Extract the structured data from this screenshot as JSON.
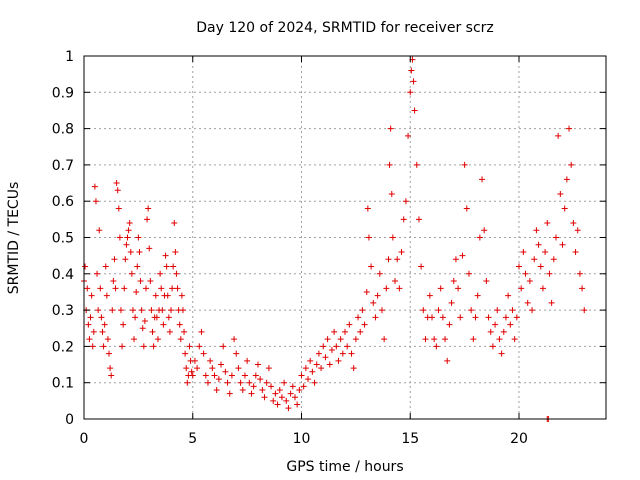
{
  "chart_data": {
    "type": "scatter",
    "title": "Day 120 of 2024, SRMTID for receiver scrz",
    "xlabel": "GPS time / hours",
    "ylabel": "SRMTID / TECUs",
    "xlim": [
      0,
      24
    ],
    "ylim": [
      0,
      1
    ],
    "xticks": [
      0,
      5,
      10,
      15,
      20
    ],
    "xtick_labels": [
      "0",
      "5",
      "10",
      "15",
      "20"
    ],
    "yticks": [
      0,
      0.1,
      0.2,
      0.3,
      0.4,
      0.5,
      0.6,
      0.7,
      0.8,
      0.9,
      1
    ],
    "ytick_labels": [
      "0",
      "0.1",
      "0.2",
      "0.3",
      "0.4",
      "0.5",
      "0.6",
      "0.7",
      "0.8",
      "0.9",
      "1"
    ],
    "grid": true,
    "marker": "+",
    "series": [
      {
        "name": "SRMTID",
        "color": "#e00000",
        "points": [
          [
            0.0,
            0.38
          ],
          [
            0.05,
            0.42
          ],
          [
            0.1,
            0.3
          ],
          [
            0.15,
            0.36
          ],
          [
            0.2,
            0.26
          ],
          [
            0.25,
            0.22
          ],
          [
            0.3,
            0.28
          ],
          [
            0.35,
            0.34
          ],
          [
            0.4,
            0.2
          ],
          [
            0.45,
            0.24
          ],
          [
            0.5,
            0.64
          ],
          [
            0.55,
            0.6
          ],
          [
            0.6,
            0.4
          ],
          [
            0.65,
            0.3
          ],
          [
            0.7,
            0.52
          ],
          [
            0.75,
            0.36
          ],
          [
            0.8,
            0.28
          ],
          [
            0.85,
            0.24
          ],
          [
            0.9,
            0.2
          ],
          [
            0.95,
            0.26
          ],
          [
            1.0,
            0.42
          ],
          [
            1.05,
            0.34
          ],
          [
            1.1,
            0.22
          ],
          [
            1.15,
            0.18
          ],
          [
            1.2,
            0.14
          ],
          [
            1.25,
            0.12
          ],
          [
            1.3,
            0.3
          ],
          [
            1.35,
            0.38
          ],
          [
            1.4,
            0.44
          ],
          [
            1.45,
            0.36
          ],
          [
            1.5,
            0.65
          ],
          [
            1.55,
            0.63
          ],
          [
            1.6,
            0.58
          ],
          [
            1.65,
            0.5
          ],
          [
            1.7,
            0.3
          ],
          [
            1.75,
            0.2
          ],
          [
            1.8,
            0.26
          ],
          [
            1.85,
            0.36
          ],
          [
            1.9,
            0.44
          ],
          [
            1.95,
            0.48
          ],
          [
            2.0,
            0.5
          ],
          [
            2.05,
            0.52
          ],
          [
            2.1,
            0.54
          ],
          [
            2.15,
            0.46
          ],
          [
            2.2,
            0.4
          ],
          [
            2.25,
            0.3
          ],
          [
            2.3,
            0.22
          ],
          [
            2.35,
            0.28
          ],
          [
            2.4,
            0.35
          ],
          [
            2.45,
            0.42
          ],
          [
            2.5,
            0.5
          ],
          [
            2.55,
            0.46
          ],
          [
            2.6,
            0.38
          ],
          [
            2.65,
            0.3
          ],
          [
            2.7,
            0.25
          ],
          [
            2.75,
            0.2
          ],
          [
            2.8,
            0.27
          ],
          [
            2.85,
            0.36
          ],
          [
            2.9,
            0.55
          ],
          [
            2.95,
            0.58
          ],
          [
            3.0,
            0.47
          ],
          [
            3.05,
            0.38
          ],
          [
            3.1,
            0.3
          ],
          [
            3.15,
            0.24
          ],
          [
            3.2,
            0.2
          ],
          [
            3.25,
            0.28
          ],
          [
            3.3,
            0.34
          ],
          [
            3.35,
            0.28
          ],
          [
            3.4,
            0.22
          ],
          [
            3.45,
            0.3
          ],
          [
            3.5,
            0.4
          ],
          [
            3.55,
            0.36
          ],
          [
            3.6,
            0.3
          ],
          [
            3.65,
            0.26
          ],
          [
            3.7,
            0.34
          ],
          [
            3.75,
            0.45
          ],
          [
            3.8,
            0.42
          ],
          [
            3.85,
            0.34
          ],
          [
            3.9,
            0.28
          ],
          [
            3.95,
            0.24
          ],
          [
            4.0,
            0.3
          ],
          [
            4.05,
            0.36
          ],
          [
            4.1,
            0.42
          ],
          [
            4.15,
            0.54
          ],
          [
            4.2,
            0.46
          ],
          [
            4.25,
            0.4
          ],
          [
            4.3,
            0.36
          ],
          [
            4.35,
            0.3
          ],
          [
            4.4,
            0.26
          ],
          [
            4.45,
            0.22
          ],
          [
            4.5,
            0.34
          ],
          [
            4.55,
            0.3
          ],
          [
            4.6,
            0.24
          ],
          [
            4.65,
            0.18
          ],
          [
            4.7,
            0.14
          ],
          [
            4.75,
            0.1
          ],
          [
            4.8,
            0.12
          ],
          [
            4.85,
            0.2
          ],
          [
            4.9,
            0.16
          ],
          [
            4.95,
            0.13
          ],
          [
            5.0,
            0.12
          ],
          [
            5.1,
            0.16
          ],
          [
            5.2,
            0.14
          ],
          [
            5.3,
            0.2
          ],
          [
            5.4,
            0.24
          ],
          [
            5.5,
            0.18
          ],
          [
            5.6,
            0.12
          ],
          [
            5.7,
            0.1
          ],
          [
            5.8,
            0.16
          ],
          [
            5.9,
            0.14
          ],
          [
            6.0,
            0.12
          ],
          [
            6.1,
            0.08
          ],
          [
            6.2,
            0.11
          ],
          [
            6.3,
            0.15
          ],
          [
            6.4,
            0.2
          ],
          [
            6.5,
            0.13
          ],
          [
            6.6,
            0.1
          ],
          [
            6.7,
            0.07
          ],
          [
            6.8,
            0.12
          ],
          [
            6.9,
            0.22
          ],
          [
            7.0,
            0.18
          ],
          [
            7.1,
            0.14
          ],
          [
            7.2,
            0.1
          ],
          [
            7.3,
            0.08
          ],
          [
            7.4,
            0.12
          ],
          [
            7.5,
            0.16
          ],
          [
            7.6,
            0.1
          ],
          [
            7.7,
            0.07
          ],
          [
            7.8,
            0.09
          ],
          [
            7.9,
            0.12
          ],
          [
            8.0,
            0.15
          ],
          [
            8.1,
            0.11
          ],
          [
            8.2,
            0.08
          ],
          [
            8.3,
            0.06
          ],
          [
            8.4,
            0.1
          ],
          [
            8.5,
            0.14
          ],
          [
            8.6,
            0.09
          ],
          [
            8.7,
            0.05
          ],
          [
            8.8,
            0.07
          ],
          [
            8.9,
            0.04
          ],
          [
            9.0,
            0.08
          ],
          [
            9.1,
            0.06
          ],
          [
            9.2,
            0.1
          ],
          [
            9.3,
            0.05
          ],
          [
            9.4,
            0.03
          ],
          [
            9.5,
            0.07
          ],
          [
            9.6,
            0.09
          ],
          [
            9.7,
            0.06
          ],
          [
            9.8,
            0.04
          ],
          [
            9.9,
            0.08
          ],
          [
            10.0,
            0.12
          ],
          [
            10.1,
            0.09
          ],
          [
            10.2,
            0.14
          ],
          [
            10.3,
            0.11
          ],
          [
            10.4,
            0.16
          ],
          [
            10.5,
            0.13
          ],
          [
            10.6,
            0.1
          ],
          [
            10.7,
            0.15
          ],
          [
            10.8,
            0.18
          ],
          [
            10.9,
            0.14
          ],
          [
            11.0,
            0.2
          ],
          [
            11.1,
            0.17
          ],
          [
            11.2,
            0.22
          ],
          [
            11.3,
            0.15
          ],
          [
            11.4,
            0.19
          ],
          [
            11.5,
            0.24
          ],
          [
            11.6,
            0.2
          ],
          [
            11.7,
            0.16
          ],
          [
            11.8,
            0.22
          ],
          [
            11.9,
            0.18
          ],
          [
            12.0,
            0.24
          ],
          [
            12.1,
            0.2
          ],
          [
            12.2,
            0.26
          ],
          [
            12.3,
            0.18
          ],
          [
            12.4,
            0.14
          ],
          [
            12.5,
            0.22
          ],
          [
            12.6,
            0.28
          ],
          [
            12.7,
            0.24
          ],
          [
            12.8,
            0.3
          ],
          [
            12.9,
            0.26
          ],
          [
            13.0,
            0.35
          ],
          [
            13.05,
            0.58
          ],
          [
            13.1,
            0.5
          ],
          [
            13.2,
            0.42
          ],
          [
            13.3,
            0.32
          ],
          [
            13.4,
            0.28
          ],
          [
            13.5,
            0.34
          ],
          [
            13.6,
            0.4
          ],
          [
            13.7,
            0.3
          ],
          [
            13.8,
            0.22
          ],
          [
            13.9,
            0.36
          ],
          [
            14.0,
            0.44
          ],
          [
            14.05,
            0.7
          ],
          [
            14.1,
            0.8
          ],
          [
            14.15,
            0.62
          ],
          [
            14.2,
            0.5
          ],
          [
            14.3,
            0.38
          ],
          [
            14.4,
            0.44
          ],
          [
            14.5,
            0.36
          ],
          [
            14.6,
            0.46
          ],
          [
            14.7,
            0.55
          ],
          [
            14.8,
            0.6
          ],
          [
            14.9,
            0.78
          ],
          [
            15.0,
            0.9
          ],
          [
            15.05,
            0.96
          ],
          [
            15.1,
            0.99
          ],
          [
            15.15,
            0.93
          ],
          [
            15.2,
            0.85
          ],
          [
            15.3,
            0.7
          ],
          [
            15.4,
            0.55
          ],
          [
            15.5,
            0.42
          ],
          [
            15.6,
            0.3
          ],
          [
            15.7,
            0.22
          ],
          [
            15.8,
            0.28
          ],
          [
            15.9,
            0.34
          ],
          [
            16.0,
            0.28
          ],
          [
            16.1,
            0.22
          ],
          [
            16.2,
            0.2
          ],
          [
            16.3,
            0.3
          ],
          [
            16.4,
            0.36
          ],
          [
            16.5,
            0.28
          ],
          [
            16.6,
            0.22
          ],
          [
            16.7,
            0.16
          ],
          [
            16.8,
            0.26
          ],
          [
            16.9,
            0.32
          ],
          [
            17.0,
            0.38
          ],
          [
            17.1,
            0.44
          ],
          [
            17.2,
            0.36
          ],
          [
            17.3,
            0.28
          ],
          [
            17.4,
            0.45
          ],
          [
            17.5,
            0.7
          ],
          [
            17.6,
            0.58
          ],
          [
            17.7,
            0.4
          ],
          [
            17.8,
            0.3
          ],
          [
            17.9,
            0.22
          ],
          [
            18.0,
            0.28
          ],
          [
            18.1,
            0.34
          ],
          [
            18.2,
            0.5
          ],
          [
            18.3,
            0.66
          ],
          [
            18.4,
            0.52
          ],
          [
            18.5,
            0.38
          ],
          [
            18.6,
            0.28
          ],
          [
            18.7,
            0.24
          ],
          [
            18.8,
            0.2
          ],
          [
            18.9,
            0.26
          ],
          [
            19.0,
            0.3
          ],
          [
            19.1,
            0.22
          ],
          [
            19.2,
            0.18
          ],
          [
            19.3,
            0.24
          ],
          [
            19.4,
            0.28
          ],
          [
            19.5,
            0.34
          ],
          [
            19.6,
            0.26
          ],
          [
            19.7,
            0.3
          ],
          [
            19.8,
            0.22
          ],
          [
            19.9,
            0.28
          ],
          [
            20.0,
            0.42
          ],
          [
            20.1,
            0.36
          ],
          [
            20.2,
            0.46
          ],
          [
            20.3,
            0.4
          ],
          [
            20.4,
            0.32
          ],
          [
            20.5,
            0.38
          ],
          [
            20.6,
            0.3
          ],
          [
            20.7,
            0.44
          ],
          [
            20.8,
            0.52
          ],
          [
            20.9,
            0.48
          ],
          [
            21.0,
            0.42
          ],
          [
            21.1,
            0.36
          ],
          [
            21.2,
            0.46
          ],
          [
            21.3,
            0.54
          ],
          [
            21.4,
            0.4
          ],
          [
            21.5,
            0.32
          ],
          [
            21.6,
            0.44
          ],
          [
            21.7,
            0.5
          ],
          [
            21.8,
            0.78
          ],
          [
            21.9,
            0.62
          ],
          [
            22.0,
            0.48
          ],
          [
            22.1,
            0.58
          ],
          [
            22.2,
            0.66
          ],
          [
            22.3,
            0.8
          ],
          [
            22.4,
            0.7
          ],
          [
            22.5,
            0.54
          ],
          [
            22.6,
            0.46
          ],
          [
            22.7,
            0.52
          ],
          [
            22.8,
            0.4
          ],
          [
            22.9,
            0.36
          ],
          [
            23.0,
            0.3
          ],
          [
            21.3,
            0.0
          ],
          [
            21.35,
            0.0
          ]
        ]
      }
    ]
  }
}
